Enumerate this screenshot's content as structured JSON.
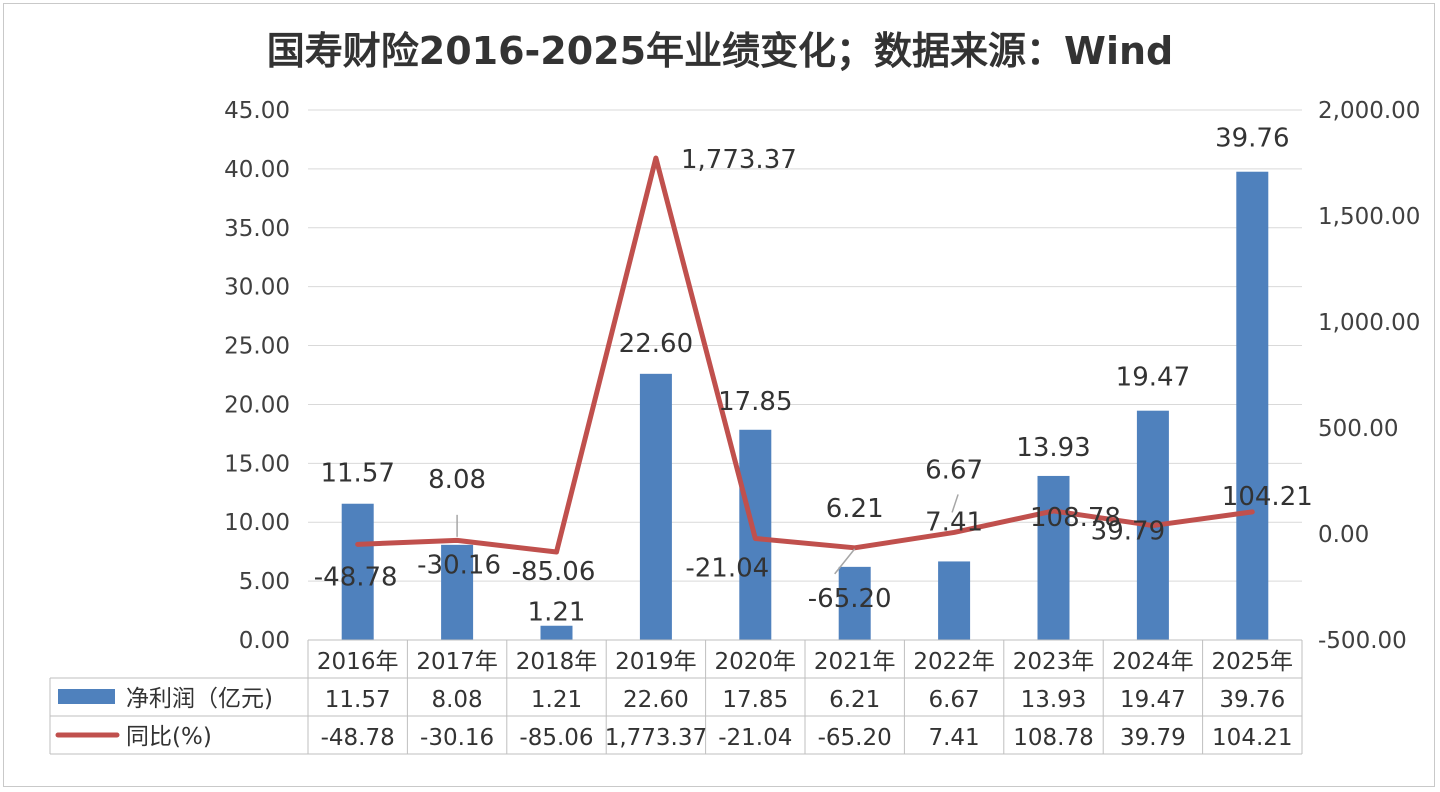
{
  "chart_data": {
    "type": "bar",
    "title": "国寿财险2016-2025年业绩变化；数据来源：Wind",
    "categories": [
      "2016年",
      "2017年",
      "2018年",
      "2019年",
      "2020年",
      "2021年",
      "2022年",
      "2023年",
      "2024年",
      "2025年"
    ],
    "series": [
      {
        "name": "净利润（亿元)",
        "type": "bar",
        "axis": "left",
        "color": "#4f81bd",
        "values": [
          11.57,
          8.08,
          1.21,
          22.6,
          17.85,
          6.21,
          6.67,
          13.93,
          19.47,
          39.76
        ],
        "labels": [
          "11.57",
          "8.08",
          "1.21",
          "22.60",
          "17.85",
          "6.21",
          "6.67",
          "13.93",
          "19.47",
          "39.76"
        ]
      },
      {
        "name": "同比(%)",
        "type": "line",
        "axis": "right",
        "color": "#c0504d",
        "values": [
          -48.78,
          -30.16,
          -85.06,
          1773.37,
          -21.04,
          -65.2,
          7.41,
          108.78,
          39.79,
          104.21
        ],
        "labels": [
          "-48.78",
          "-30.16",
          "-85.06",
          "1,773.37",
          "-21.04",
          "-65.20",
          "7.41",
          "108.78",
          "39.79",
          "104.21"
        ]
      }
    ],
    "y_left": {
      "lim": [
        0,
        45
      ],
      "ticks": [
        "0.00",
        "5.00",
        "10.00",
        "15.00",
        "20.00",
        "25.00",
        "30.00",
        "35.00",
        "40.00",
        "45.00"
      ]
    },
    "y_right": {
      "lim": [
        -500,
        2000
      ],
      "ticks": [
        "-500.00",
        "0.00",
        "500.00",
        "1,000.00",
        "1,500.00",
        "2,000.00"
      ]
    },
    "grid": true,
    "legend": "data-table"
  }
}
